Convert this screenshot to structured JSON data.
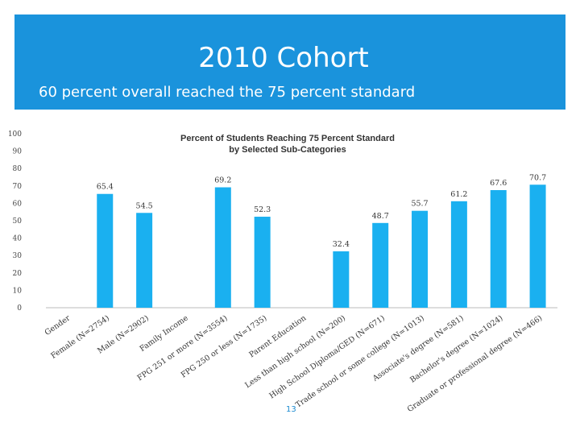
{
  "slide": {
    "title": "2010 Cohort",
    "subtitle": "60 percent overall reached the 75 percent standard",
    "page_number": "13",
    "header_color": "#1a93dc"
  },
  "chart_data": {
    "type": "bar",
    "title": "Percent of Students Reaching 75 Percent Standard",
    "subtitle": "by Selected Sub-Categories",
    "xlabel": "",
    "ylabel": "",
    "ylim": [
      0,
      100
    ],
    "yticks": [
      0,
      10,
      20,
      30,
      40,
      50,
      60,
      70,
      80,
      90,
      100
    ],
    "grid": false,
    "bar_color": "#1ab0f0",
    "categories": [
      "Gender",
      "Female (N=2754)",
      "Male (N=2902)",
      "Family Income",
      "FPG 251 or more (N=3554)",
      "FPG 250 or less (N=1735)",
      "Parent Education",
      "Less than high school (N=200)",
      "High School Diploma/GED (N=671)",
      "Trade school or some college (N=1013)",
      "Associate's degree (N=581)",
      "Bachelor's degree (N=1024)",
      "Graduate or professional degree (N=466)"
    ],
    "values": [
      null,
      65.4,
      54.5,
      null,
      69.2,
      52.3,
      null,
      32.4,
      48.7,
      55.7,
      61.2,
      67.6,
      70.7
    ],
    "data_labels": [
      "",
      "65.4",
      "54.5",
      "",
      "69.2",
      "52.3",
      "",
      "32.4",
      "48.7",
      "55.7",
      "61.2",
      "67.6",
      "70.7"
    ]
  }
}
